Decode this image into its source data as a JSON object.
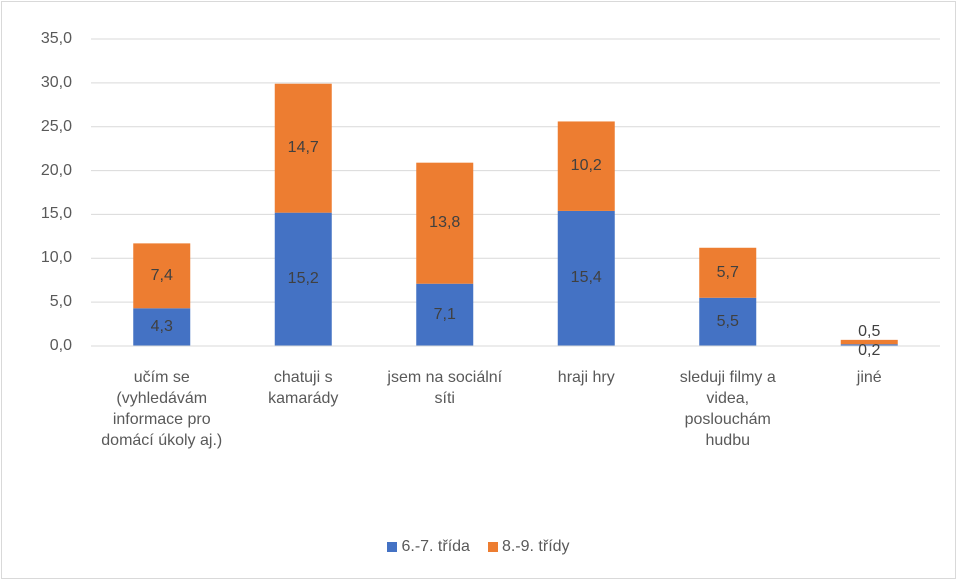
{
  "chart_data": {
    "type": "stacked_bar",
    "categories": [
      "učím se (vyhledávám informace pro domácí úkoly aj.)",
      "chatuji s kamarády",
      "jsem na sociální síti",
      "hraji hry",
      "sleduji filmy a videa, poslouchám hudbu",
      "jiné"
    ],
    "series": [
      {
        "name": "6.-7. třída",
        "color": "#4472c4",
        "values": [
          4.3,
          15.2,
          7.1,
          15.4,
          5.5,
          0.2
        ],
        "value_labels": [
          "4,3",
          "15,2",
          "7,1",
          "15,4",
          "5,5",
          "0,2"
        ]
      },
      {
        "name": "8.-9. třídy",
        "color": "#ed7d31",
        "values": [
          7.4,
          14.7,
          13.8,
          10.2,
          5.7,
          0.5
        ],
        "value_labels": [
          "7,4",
          "14,7",
          "13,8",
          "10,2",
          "5,7",
          "0,5"
        ]
      }
    ],
    "ylim": [
      0,
      35
    ],
    "yticks": [
      {
        "value": 0,
        "label": "0,0"
      },
      {
        "value": 5,
        "label": "5,0"
      },
      {
        "value": 10,
        "label": "10,0"
      },
      {
        "value": 15,
        "label": "15,0"
      },
      {
        "value": 20,
        "label": "20,0"
      },
      {
        "value": 25,
        "label": "25,0"
      },
      {
        "value": 30,
        "label": "30,0"
      },
      {
        "value": 35,
        "label": "35,0"
      }
    ],
    "grid": true,
    "legend": "bottom"
  }
}
